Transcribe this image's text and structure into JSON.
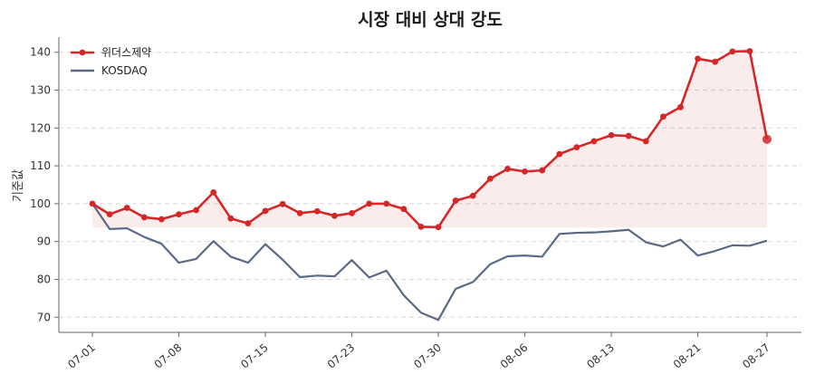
{
  "chart_data": {
    "type": "line",
    "title": "시장 대비 상대 강도",
    "xlabel": "",
    "ylabel": "기준값",
    "ylim": [
      66,
      144
    ],
    "yticks": [
      70,
      80,
      90,
      100,
      110,
      120,
      130,
      140
    ],
    "xtick_labels": [
      "07-01",
      "07-08",
      "07-15",
      "07-23",
      "07-30",
      "08-06",
      "08-13",
      "08-21",
      "08-27"
    ],
    "xtick_index": [
      0,
      5,
      10,
      15,
      20,
      25,
      30,
      35,
      39
    ],
    "x": [
      "07-01",
      "07-02",
      "07-03",
      "07-04",
      "07-05",
      "07-08",
      "07-09",
      "07-10",
      "07-11",
      "07-12",
      "07-15",
      "07-16",
      "07-17",
      "07-18",
      "07-19",
      "07-23",
      "07-24",
      "07-25",
      "07-26",
      "07-29",
      "07-30",
      "07-31",
      "08-01",
      "08-02",
      "08-05",
      "08-06",
      "08-07",
      "08-08",
      "08-09",
      "08-12",
      "08-13",
      "08-14",
      "08-16",
      "08-19",
      "08-20",
      "08-21",
      "08-22",
      "08-23",
      "08-26",
      "08-27"
    ],
    "series": [
      {
        "name": "위더스제약",
        "color": "#d62728",
        "marker": "circle",
        "fill_baseline": 93.7,
        "values": [
          100.0,
          97.2,
          98.9,
          96.4,
          95.9,
          97.2,
          98.3,
          103.0,
          96.1,
          94.8,
          98.1,
          99.9,
          97.5,
          98.0,
          96.8,
          97.5,
          100.0,
          100.0,
          98.6,
          93.9,
          93.8,
          100.8,
          102.1,
          106.6,
          109.2,
          108.5,
          108.8,
          113.1,
          114.9,
          116.5,
          118.1,
          117.9,
          116.5,
          123.0,
          125.5,
          138.3,
          137.5,
          140.2,
          140.3,
          117.0
        ]
      },
      {
        "name": "KOSDAQ",
        "color": "#5a6a85",
        "marker": "none",
        "values": [
          100.0,
          93.3,
          93.5,
          91.2,
          89.4,
          84.4,
          85.4,
          90.1,
          86.0,
          84.4,
          89.3,
          85.2,
          80.6,
          81.0,
          80.8,
          85.1,
          80.5,
          82.3,
          75.8,
          71.2,
          69.3,
          77.5,
          79.3,
          84.0,
          86.1,
          86.3,
          86.0,
          92.0,
          92.3,
          92.4,
          92.7,
          93.1,
          89.8,
          88.7,
          90.5,
          86.3,
          87.5,
          89.0,
          88.9,
          90.2
        ]
      }
    ],
    "grid": true,
    "legend_position": "top-left"
  }
}
